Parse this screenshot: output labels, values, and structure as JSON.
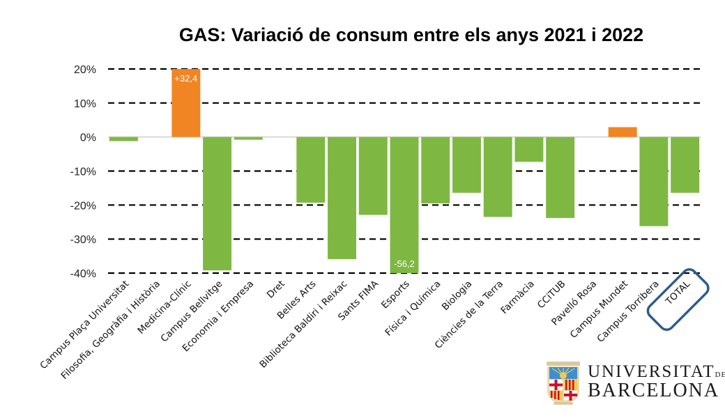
{
  "chart_data": {
    "type": "bar",
    "title": "GAS: Variació de consum entre els anys 2021 i 2022",
    "xlabel": "",
    "ylabel": "",
    "ylim": [
      -40,
      20
    ],
    "yticks": [
      20,
      10,
      0,
      -10,
      -20,
      -30,
      -40
    ],
    "ytick_labels": [
      "20%",
      "10%",
      "0%",
      "-10%",
      "-20%",
      "-30%",
      "-40%"
    ],
    "grid": "horizontal dashed",
    "legend": "none",
    "positive_color": "#F18523",
    "negative_color": "#7EB843",
    "zero_line_color": "#D9D9D9",
    "categories": [
      "Campus Plaça Universitat",
      "Filosofia, Geogràfia i Història",
      "Medicina-Clínic",
      "Campus Bellvitge",
      "Economia i Empresa",
      "Dret",
      "Belles Arts",
      "Biblioteca Baldiri i Reixac",
      "Sants FIMA",
      "Esports",
      "Física i Química",
      "Biologia",
      "Ciències de la Terra",
      "Farmàcia",
      "CCiTUB",
      "Pavelló Rosa",
      "Campus Mundet",
      "Campus Torribera",
      "TOTAL"
    ],
    "values": [
      -1.2,
      0,
      32.4,
      -39.2,
      -0.8,
      0,
      -19.3,
      -35.9,
      -22.9,
      -56.2,
      -19.5,
      -16.4,
      -23.5,
      -7.3,
      -23.8,
      0,
      2.9,
      -26.2,
      -16.4
    ],
    "data_labels": [
      {
        "category": "Medicina-Clínic",
        "text": "+32,4"
      },
      {
        "category": "Esports",
        "text": "-56,2"
      }
    ],
    "highlight": {
      "category": "TOTAL",
      "style": "rounded box outline",
      "color": "#2E5C8A"
    }
  },
  "logo": {
    "line1": "UNIVERSITAT",
    "line1_suffix": "DE",
    "line2": "BARCELONA"
  }
}
